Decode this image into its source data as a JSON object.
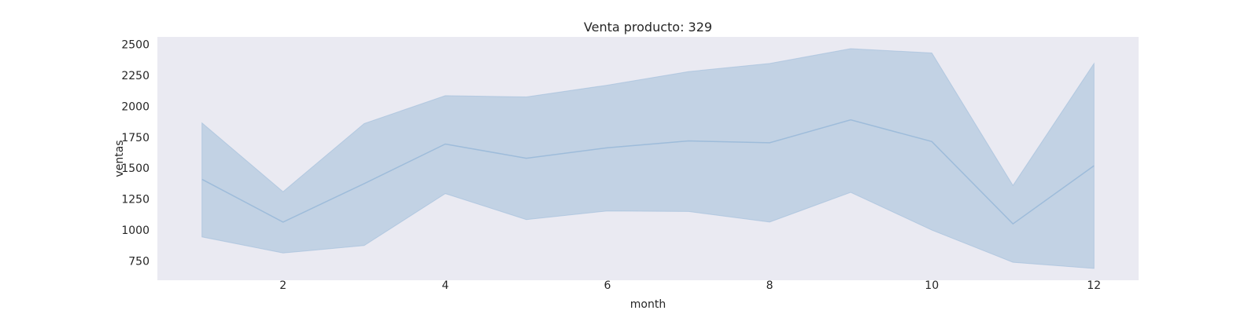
{
  "chart_data": {
    "type": "line",
    "title": "Venta producto: 329",
    "xlabel": "month",
    "ylabel": "ventas",
    "x": [
      1,
      2,
      3,
      4,
      5,
      6,
      7,
      8,
      9,
      10,
      11,
      12
    ],
    "series": [
      {
        "values": [
          1410,
          1065,
          1375,
          1695,
          1580,
          1665,
          1720,
          1705,
          1890,
          1715,
          1050,
          1520
        ],
        "band_low": [
          945,
          815,
          875,
          1295,
          1085,
          1155,
          1150,
          1065,
          1305,
          1000,
          740,
          690
        ],
        "band_high": [
          1865,
          1310,
          1860,
          2085,
          2075,
          2170,
          2280,
          2345,
          2465,
          2430,
          1360,
          2345
        ]
      }
    ],
    "xticks": [
      2,
      4,
      6,
      8,
      10,
      12
    ],
    "yticks": [
      750,
      1000,
      1250,
      1500,
      1750,
      2000,
      2250,
      2500
    ],
    "xlim": [
      0.45,
      12.55
    ],
    "ylim": [
      595,
      2560
    ],
    "grid": false,
    "colors": {
      "line": "#9ebcda",
      "band": "#c2d2e4",
      "plot_bg": "#eaeaf2"
    }
  }
}
